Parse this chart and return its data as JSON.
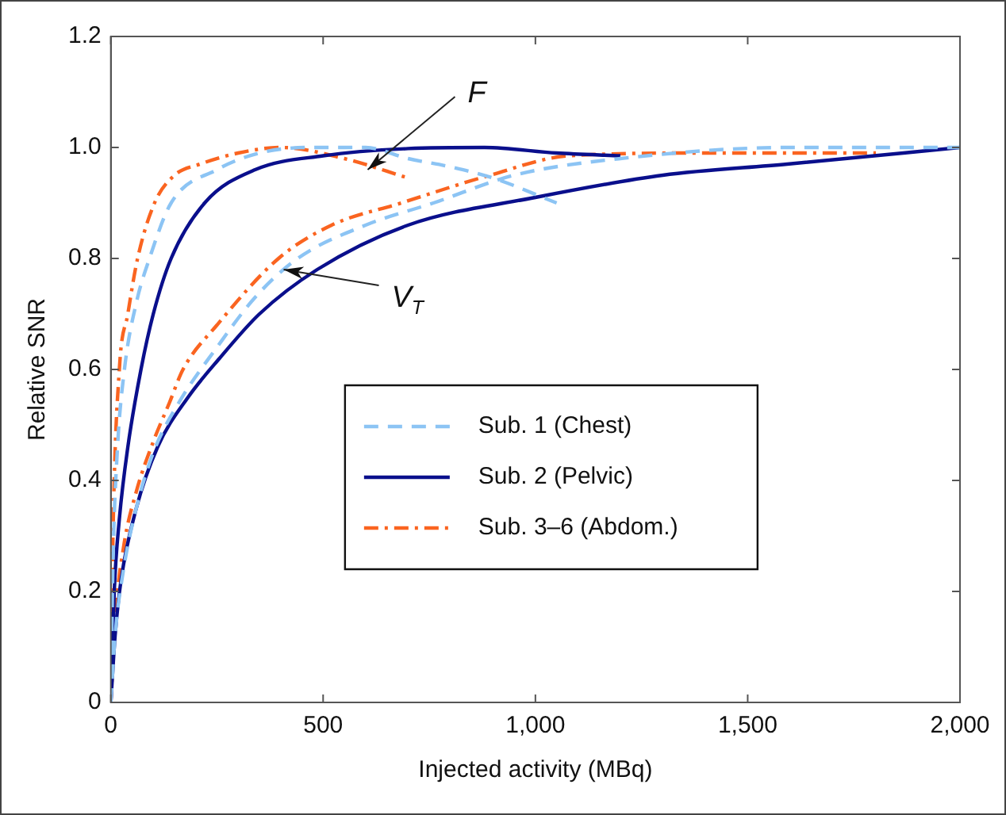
{
  "chart_data": {
    "type": "line",
    "xlabel": "Injected activity (MBq)",
    "ylabel": "Relative SNR",
    "xlim": [
      0,
      2000
    ],
    "ylim": [
      0,
      1.2
    ],
    "xticks": [
      0,
      500,
      {
        "value": 1000,
        "label": "1,000"
      },
      {
        "value": 1500,
        "label": "1,500"
      },
      {
        "value": 2000,
        "label": "2,000"
      }
    ],
    "yticks": [
      0,
      0.2,
      0.4,
      0.6,
      0.8,
      {
        "value": 1,
        "label": "1.0"
      },
      1.2
    ],
    "grid": false,
    "legend": "center",
    "marker": "none",
    "annotations": [
      {
        "text": "F",
        "x": 605,
        "y": 0.96
      },
      {
        "text": "V$_{T}$",
        "x": 407,
        "y": 0.78
      }
    ],
    "series": [
      {
        "name": "Sub. 1 (Chest)",
        "color": "#8cc4f4",
        "line_style": "dashed",
        "x": [
          0,
          5,
          15,
          32,
          60,
          91,
          142,
          250,
          350,
          470,
          600,
          700,
          800,
          900,
          1050
        ],
        "values": [
          0,
          0.25,
          0.45,
          0.6,
          0.72,
          0.8,
          0.9,
          0.96,
          0.99,
          1.0,
          1.0,
          0.98,
          0.965,
          0.945,
          0.9
        ]
      },
      {
        "color": "#8cc4f4",
        "line_style": "dashed",
        "x": [
          0,
          10,
          30,
          60,
          100,
          160,
          250,
          340,
          440,
          600,
          760,
          950,
          1200,
          1600,
          2000
        ],
        "values": [
          0,
          0.12,
          0.24,
          0.35,
          0.45,
          0.54,
          0.64,
          0.73,
          0.8,
          0.86,
          0.9,
          0.95,
          0.98,
          1.0,
          1.0
        ]
      },
      {
        "name": "Sub. 2 (Pelvic)",
        "color": "#0a0f8c",
        "line_style": "solid",
        "x": [
          0,
          8,
          20,
          40,
          71,
          100,
          142,
          221,
          340,
          500,
          700,
          880,
          1050,
          1200
        ],
        "values": [
          0,
          0.2,
          0.33,
          0.46,
          0.6,
          0.7,
          0.8,
          0.9,
          0.96,
          0.985,
          0.998,
          1.0,
          0.99,
          0.985
        ]
      },
      {
        "color": "#0a0f8c",
        "line_style": "solid",
        "x": [
          0,
          10,
          24,
          60,
          110,
          182,
          256,
          350,
          486,
          700,
          1000,
          1300,
          1593,
          2000
        ],
        "values": [
          0,
          0.12,
          0.22,
          0.35,
          0.46,
          0.55,
          0.62,
          0.7,
          0.78,
          0.86,
          0.91,
          0.95,
          0.97,
          1.0
        ]
      },
      {
        "name": "Sub. 3–6 (Abdom.)",
        "color": "#fa6420",
        "line_style": "dashdot",
        "x": [
          0,
          5,
          20,
          40,
          63,
          103,
          150,
          210,
          300,
          400,
          550,
          700
        ],
        "values": [
          0,
          0.3,
          0.6,
          0.7,
          0.8,
          0.9,
          0.95,
          0.97,
          0.99,
          1.0,
          0.98,
          0.945
        ]
      },
      {
        "color": "#fa6420",
        "line_style": "dashdot",
        "x": [
          0,
          10,
          30,
          60,
          100,
          138,
          170,
          250,
          395,
          520,
          684,
          893,
          1079,
          1400,
          1802
        ],
        "values": [
          0,
          0.15,
          0.28,
          0.38,
          0.47,
          0.54,
          0.6,
          0.68,
          0.8,
          0.86,
          0.9,
          0.95,
          0.985,
          0.99,
          0.99
        ]
      }
    ]
  }
}
